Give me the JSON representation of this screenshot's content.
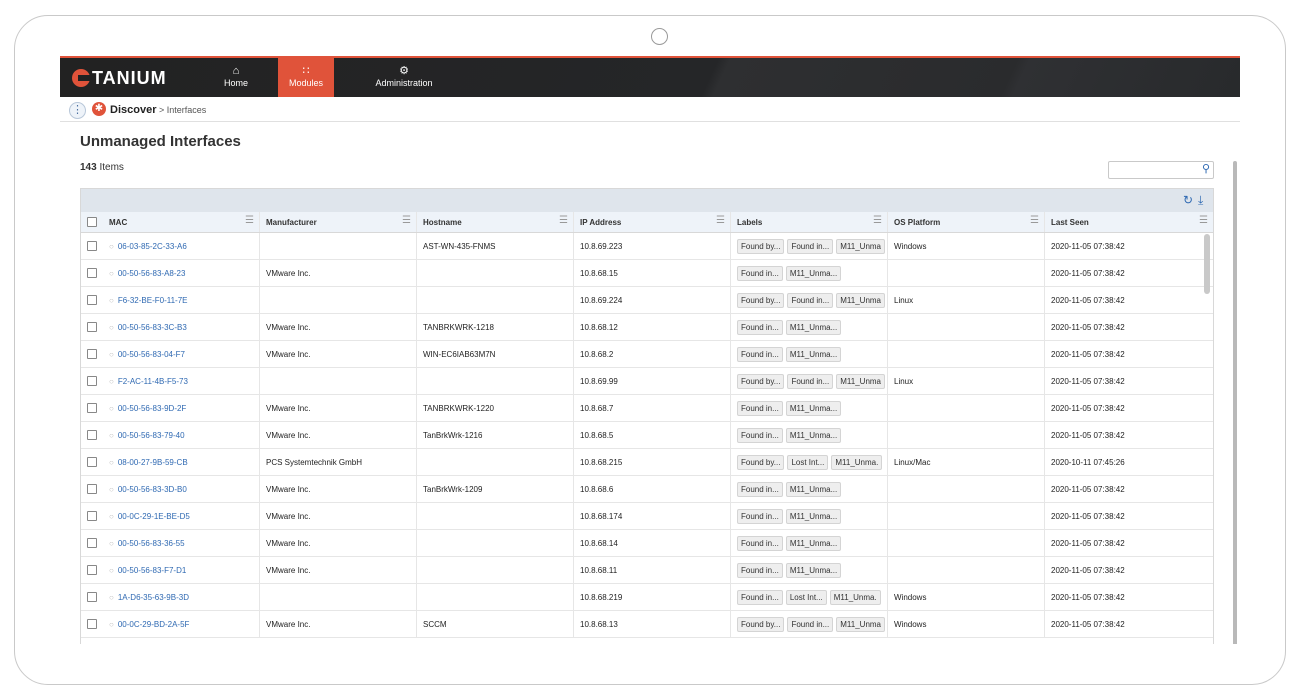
{
  "app": {
    "logo_text": "TANIUM",
    "nav": [
      {
        "label": "Home",
        "icon": "home-icon"
      },
      {
        "label": "Modules",
        "icon": "modules-grid-icon"
      },
      {
        "label": "Administration",
        "icon": "gears-icon"
      }
    ],
    "accent_color": "#e0533a"
  },
  "breadcrumb": {
    "module": "Discover",
    "separator": ">",
    "page": "Interfaces"
  },
  "page": {
    "title": "Unmanaged Interfaces",
    "item_count": "143",
    "items_label": "Items"
  },
  "search": {
    "placeholder": "",
    "value": ""
  },
  "table": {
    "columns": [
      "MAC",
      "Manufacturer",
      "Hostname",
      "IP Address",
      "Labels",
      "OS Platform",
      "Last Seen"
    ],
    "rows": [
      {
        "mac": "06-03-85-2C-33-A6",
        "manufacturer": "",
        "hostname": "AST-WN-435-FNMS",
        "ip": "10.8.69.223",
        "labels": [
          "Found by...",
          "Found in...",
          "M11_Unma"
        ],
        "os": "Windows",
        "last_seen": "2020-11-05 07:38:42"
      },
      {
        "mac": "00-50-56-83-A8-23",
        "manufacturer": "VMware Inc.",
        "hostname": "",
        "ip": "10.8.68.15",
        "labels": [
          "Found in...",
          "M11_Unma..."
        ],
        "os": "",
        "last_seen": "2020-11-05 07:38:42"
      },
      {
        "mac": "F6-32-BE-F0-11-7E",
        "manufacturer": "",
        "hostname": "",
        "ip": "10.8.69.224",
        "labels": [
          "Found by...",
          "Found in...",
          "M11_Unma"
        ],
        "os": "Linux",
        "last_seen": "2020-11-05 07:38:42"
      },
      {
        "mac": "00-50-56-83-3C-B3",
        "manufacturer": "VMware Inc.",
        "hostname": "TANBRKWRK-1218",
        "ip": "10.8.68.12",
        "labels": [
          "Found in...",
          "M11_Unma..."
        ],
        "os": "",
        "last_seen": "2020-11-05 07:38:42"
      },
      {
        "mac": "00-50-56-83-04-F7",
        "manufacturer": "VMware Inc.",
        "hostname": "WIN-EC6IAB63M7N",
        "ip": "10.8.68.2",
        "labels": [
          "Found in...",
          "M11_Unma..."
        ],
        "os": "",
        "last_seen": "2020-11-05 07:38:42"
      },
      {
        "mac": "F2-AC-11-4B-F5-73",
        "manufacturer": "",
        "hostname": "",
        "ip": "10.8.69.99",
        "labels": [
          "Found by...",
          "Found in...",
          "M11_Unma"
        ],
        "os": "Linux",
        "last_seen": "2020-11-05 07:38:42"
      },
      {
        "mac": "00-50-56-83-9D-2F",
        "manufacturer": "VMware Inc.",
        "hostname": "TANBRKWRK-1220",
        "ip": "10.8.68.7",
        "labels": [
          "Found in...",
          "M11_Unma..."
        ],
        "os": "",
        "last_seen": "2020-11-05 07:38:42"
      },
      {
        "mac": "00-50-56-83-79-40",
        "manufacturer": "VMware Inc.",
        "hostname": "TanBrkWrk-1216",
        "ip": "10.8.68.5",
        "labels": [
          "Found in...",
          "M11_Unma..."
        ],
        "os": "",
        "last_seen": "2020-11-05 07:38:42"
      },
      {
        "mac": "08-00-27-9B-59-CB",
        "manufacturer": "PCS Systemtechnik GmbH",
        "hostname": "",
        "ip": "10.8.68.215",
        "labels": [
          "Found by...",
          "Lost Int...",
          "M11_Unma."
        ],
        "os": "Linux/Mac",
        "last_seen": "2020-10-11 07:45:26"
      },
      {
        "mac": "00-50-56-83-3D-B0",
        "manufacturer": "VMware Inc.",
        "hostname": "TanBrkWrk-1209",
        "ip": "10.8.68.6",
        "labels": [
          "Found in...",
          "M11_Unma..."
        ],
        "os": "",
        "last_seen": "2020-11-05 07:38:42"
      },
      {
        "mac": "00-0C-29-1E-BE-D5",
        "manufacturer": "VMware Inc.",
        "hostname": "",
        "ip": "10.8.68.174",
        "labels": [
          "Found in...",
          "M11_Unma..."
        ],
        "os": "",
        "last_seen": "2020-11-05 07:38:42"
      },
      {
        "mac": "00-50-56-83-36-55",
        "manufacturer": "VMware Inc.",
        "hostname": "",
        "ip": "10.8.68.14",
        "labels": [
          "Found in...",
          "M11_Unma..."
        ],
        "os": "",
        "last_seen": "2020-11-05 07:38:42"
      },
      {
        "mac": "00-50-56-83-F7-D1",
        "manufacturer": "VMware Inc.",
        "hostname": "",
        "ip": "10.8.68.11",
        "labels": [
          "Found in...",
          "M11_Unma..."
        ],
        "os": "",
        "last_seen": "2020-11-05 07:38:42"
      },
      {
        "mac": "1A-D6-35-63-9B-3D",
        "manufacturer": "",
        "hostname": "",
        "ip": "10.8.68.219",
        "labels": [
          "Found in...",
          "Lost Int...",
          "M11_Unma."
        ],
        "os": "Windows",
        "last_seen": "2020-11-05 07:38:42"
      },
      {
        "mac": "00-0C-29-BD-2A-5F",
        "manufacturer": "VMware Inc.",
        "hostname": "SCCM",
        "ip": "10.8.68.13",
        "labels": [
          "Found by...",
          "Found in...",
          "M11_Unma"
        ],
        "os": "Windows",
        "last_seen": "2020-11-05 07:38:42"
      }
    ]
  }
}
